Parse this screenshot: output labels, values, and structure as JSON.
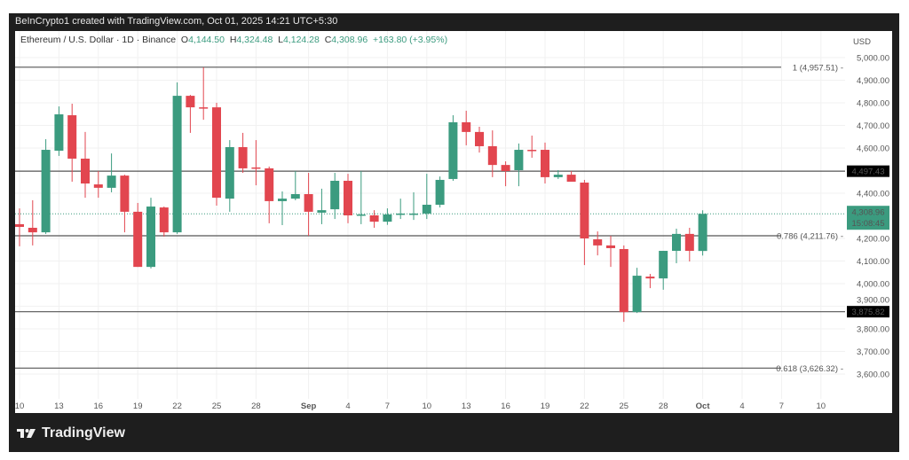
{
  "header": {
    "attribution": "BeInCrypto1 created with TradingView.com, Oct 01, 2025 14:21 UTC+5:30"
  },
  "legend": {
    "symbol": "Ethereum / U.S. Dollar · 1D · Binance",
    "open_label": "O",
    "open": "4,144.50",
    "high_label": "H",
    "high": "4,324.48",
    "low_label": "L",
    "low": "4,124.28",
    "close_label": "C",
    "close": "4,308.96",
    "change": "+163.80 (+3.95%)"
  },
  "footer": {
    "brand": "TradingView"
  },
  "colors": {
    "up": "#3b9b7f",
    "down": "#e2464f",
    "frame": "#1e1e1e"
  },
  "chart_data": {
    "type": "candlestick",
    "title": "Ethereum / U.S. Dollar · 1D · Binance",
    "currency": "USD",
    "ylim": [
      3520,
      5050
    ],
    "grid": true,
    "y_ticks": [
      "5,000.00",
      "4,900.00",
      "4,800.00",
      "4,700.00",
      "4,600.00",
      "4,400.00",
      "4,200.00",
      "4,100.00",
      "4,000.00",
      "3,900.00",
      "3,800.00",
      "3,700.00",
      "3,600.00"
    ],
    "y_tick_values": [
      5000,
      4900,
      4800,
      4700,
      4600,
      4400,
      4200,
      4100,
      4000,
      3900,
      3800,
      3700,
      3600
    ],
    "x_ticks": [
      {
        "label": "10",
        "day": 0
      },
      {
        "label": "13",
        "day": 3
      },
      {
        "label": "16",
        "day": 6
      },
      {
        "label": "19",
        "day": 9
      },
      {
        "label": "22",
        "day": 12
      },
      {
        "label": "25",
        "day": 15
      },
      {
        "label": "28",
        "day": 18
      },
      {
        "label": "Sep",
        "day": 22,
        "bold": true
      },
      {
        "label": "4",
        "day": 25
      },
      {
        "label": "7",
        "day": 28
      },
      {
        "label": "10",
        "day": 31
      },
      {
        "label": "13",
        "day": 34
      },
      {
        "label": "16",
        "day": 37
      },
      {
        "label": "19",
        "day": 40
      },
      {
        "label": "22",
        "day": 43
      },
      {
        "label": "25",
        "day": 46
      },
      {
        "label": "28",
        "day": 49
      },
      {
        "label": "Oct",
        "day": 52,
        "bold": true
      },
      {
        "label": "4",
        "day": 55
      },
      {
        "label": "7",
        "day": 58
      },
      {
        "label": "10",
        "day": 61
      }
    ],
    "candles": [
      [
        "Aug 10",
        4263,
        4333,
        4165,
        4251
      ],
      [
        "Aug 11",
        4247,
        4369,
        4169,
        4227
      ],
      [
        "Aug 12",
        4227,
        4639,
        4220,
        4592
      ],
      [
        "Aug 13",
        4588,
        4784,
        4565,
        4749
      ],
      [
        "Aug 14",
        4745,
        4796,
        4451,
        4553
      ],
      [
        "Aug 15",
        4553,
        4671,
        4380,
        4443
      ],
      [
        "Aug 16",
        4439,
        4498,
        4380,
        4424
      ],
      [
        "Aug 17",
        4424,
        4576,
        4404,
        4478
      ],
      [
        "Aug 18",
        4478,
        4482,
        4227,
        4318
      ],
      [
        "Aug 19",
        4318,
        4357,
        4074,
        4074
      ],
      [
        "Aug 20",
        4074,
        4380,
        4067,
        4341
      ],
      [
        "Aug 21",
        4337,
        4341,
        4208,
        4227
      ],
      [
        "Aug 22",
        4227,
        4890,
        4220,
        4831
      ],
      [
        "Aug 23",
        4831,
        4835,
        4667,
        4780
      ],
      [
        "Aug 24",
        4780,
        4957,
        4725,
        4776
      ],
      [
        "Aug 25",
        4780,
        4800,
        4345,
        4380
      ],
      [
        "Aug 26",
        4376,
        4635,
        4318,
        4604
      ],
      [
        "Aug 27",
        4604,
        4667,
        4490,
        4510
      ],
      [
        "Aug 28",
        4514,
        4635,
        4435,
        4510
      ],
      [
        "Aug 29",
        4510,
        4518,
        4267,
        4365
      ],
      [
        "Aug 30",
        4365,
        4408,
        4259,
        4376
      ],
      [
        "Aug 31",
        4376,
        4498,
        4369,
        4396
      ],
      [
        "Sep 1",
        4396,
        4490,
        4212,
        4318
      ],
      [
        "Sep 2",
        4314,
        4420,
        4263,
        4325
      ],
      [
        "Sep 3",
        4329,
        4490,
        4286,
        4455
      ],
      [
        "Sep 4",
        4455,
        4486,
        4267,
        4302
      ],
      [
        "Sep 5",
        4302,
        4498,
        4263,
        4306
      ],
      [
        "Sep 6",
        4302,
        4325,
        4247,
        4274
      ],
      [
        "Sep 7",
        4274,
        4333,
        4260,
        4306
      ],
      [
        "Sep 8",
        4306,
        4376,
        4286,
        4310
      ],
      [
        "Sep 9",
        4306,
        4404,
        4282,
        4310
      ],
      [
        "Sep 10",
        4310,
        4486,
        4286,
        4349
      ],
      [
        "Sep 11",
        4349,
        4474,
        4337,
        4459
      ],
      [
        "Sep 12",
        4463,
        4745,
        4455,
        4714
      ],
      [
        "Sep 13",
        4714,
        4765,
        4612,
        4671
      ],
      [
        "Sep 14",
        4671,
        4694,
        4580,
        4608
      ],
      [
        "Sep 15",
        4608,
        4678,
        4471,
        4525
      ],
      [
        "Sep 16",
        4525,
        4541,
        4431,
        4498
      ],
      [
        "Sep 17",
        4502,
        4620,
        4431,
        4592
      ],
      [
        "Sep 18",
        4592,
        4655,
        4557,
        4588
      ],
      [
        "Sep 19",
        4592,
        4624,
        4443,
        4471
      ],
      [
        "Sep 20",
        4471,
        4502,
        4463,
        4482
      ],
      [
        "Sep 21",
        4482,
        4498,
        4451,
        4451
      ],
      [
        "Sep 22",
        4447,
        4459,
        4082,
        4200
      ],
      [
        "Sep 23",
        4196,
        4231,
        4125,
        4169
      ],
      [
        "Sep 24",
        4169,
        4212,
        4074,
        4157
      ],
      [
        "Sep 25",
        4153,
        4169,
        3831,
        3874
      ],
      [
        "Sep 26",
        3874,
        4070,
        3870,
        4035
      ],
      [
        "Sep 27",
        4031,
        4043,
        3980,
        4023
      ],
      [
        "Sep 28",
        4023,
        4145,
        3973,
        4145
      ],
      [
        "Sep 29",
        4145,
        4243,
        4090,
        4220
      ],
      [
        "Sep 30",
        4220,
        4247,
        4098,
        4145
      ],
      [
        "Oct 1",
        4144.5,
        4324.48,
        4124.28,
        4308.96
      ]
    ],
    "levels": [
      {
        "value": 4957.51,
        "label": "1 (4,957.51)",
        "type": "fib"
      },
      {
        "value": 4497.43,
        "label": "4,497.43",
        "type": "marker"
      },
      {
        "value": 4211.76,
        "label": "0.786 (4,211.76)",
        "type": "fib"
      },
      {
        "value": 3875.82,
        "label": "3,875.82",
        "type": "marker"
      },
      {
        "value": 3626.32,
        "label": "0.618 (3,626.32)",
        "type": "fib"
      }
    ],
    "current_price": {
      "value": 4308.96,
      "label": "4,308.96",
      "countdown": "15:08:45"
    }
  }
}
